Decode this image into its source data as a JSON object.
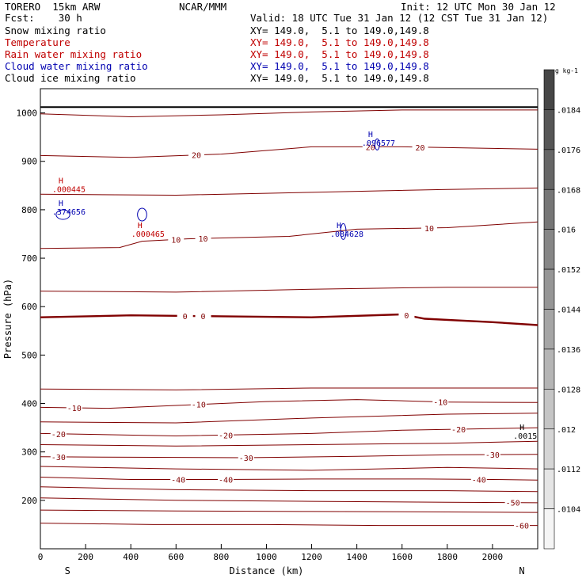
{
  "header": {
    "model": "TORERO  15km ARW",
    "center": "NCAR/MMM",
    "init": "Init: 12 UTC Mon 30 Jan 12",
    "fcst": "Fcst:    30 h",
    "valid": "Valid: 18 UTC Tue 31 Jan 12 (12 CST Tue 31 Jan 12)"
  },
  "legend": [
    {
      "label": "Snow mixing ratio",
      "xy": "XY= 149.0,  5.1 to 149.0,149.8",
      "color": "#000000"
    },
    {
      "label": "Temperature",
      "xy": "XY= 149.0,  5.1 to 149.0,149.8",
      "color": "#c00000"
    },
    {
      "label": "Rain water mixing ratio",
      "xy": "XY= 149.0,  5.1 to 149.0,149.8",
      "color": "#c00000"
    },
    {
      "label": "Cloud water mixing ratio",
      "xy": "XY= 149.0,  5.1 to 149.0,149.8",
      "color": "#0000b0"
    },
    {
      "label": "Cloud ice mixing ratio",
      "xy": "XY= 149.0,  5.1 to 149.0,149.8",
      "color": "#000000"
    }
  ],
  "chart_data": {
    "type": "contour-cross-section",
    "xlabel": "Distance (km)",
    "ylabel": "Pressure (hPa)",
    "xlim": [
      0,
      2200
    ],
    "ylim": [
      1050,
      100
    ],
    "x_ticks": [
      0,
      200,
      400,
      600,
      800,
      1000,
      1200,
      1400,
      1600,
      1800,
      2000
    ],
    "y_ticks": [
      200,
      300,
      400,
      500,
      600,
      700,
      800,
      900,
      1000
    ],
    "x_end_labels": {
      "left": "S",
      "right": "N"
    },
    "isotherms": [
      {
        "level": -60,
        "points": [
          [
            0,
            153
          ],
          [
            500,
            150
          ],
          [
            1000,
            150
          ],
          [
            1500,
            148
          ],
          [
            2000,
            148
          ],
          [
            2200,
            148
          ]
        ],
        "labels": [
          [
            2130,
            -60
          ]
        ]
      },
      {
        "level": -55,
        "points": [
          [
            0,
            180
          ],
          [
            600,
            178
          ],
          [
            1200,
            177
          ],
          [
            1800,
            176
          ],
          [
            2200,
            175
          ]
        ],
        "labels": []
      },
      {
        "level": -50,
        "points": [
          [
            0,
            205
          ],
          [
            600,
            200
          ],
          [
            1200,
            198
          ],
          [
            1800,
            196
          ],
          [
            2200,
            195
          ]
        ],
        "labels": [
          [
            2090,
            -50
          ]
        ]
      },
      {
        "level": -45,
        "points": [
          [
            0,
            228
          ],
          [
            600,
            222
          ],
          [
            1200,
            220
          ],
          [
            1800,
            220
          ],
          [
            2200,
            218
          ]
        ],
        "labels": []
      },
      {
        "level": -40,
        "points": [
          [
            0,
            248
          ],
          [
            400,
            243
          ],
          [
            800,
            243
          ],
          [
            1200,
            244
          ],
          [
            1700,
            244
          ],
          [
            2000,
            243
          ],
          [
            2200,
            242
          ]
        ],
        "labels": [
          [
            610,
            -40
          ],
          [
            820,
            -40
          ],
          [
            1940,
            -40
          ]
        ]
      },
      {
        "level": -35,
        "points": [
          [
            0,
            270
          ],
          [
            600,
            265
          ],
          [
            1200,
            262
          ],
          [
            1800,
            268
          ],
          [
            2200,
            265
          ]
        ],
        "labels": []
      },
      {
        "level": -30,
        "points": [
          [
            0,
            290
          ],
          [
            400,
            289
          ],
          [
            900,
            288
          ],
          [
            1400,
            291
          ],
          [
            1800,
            294
          ],
          [
            2200,
            295
          ]
        ],
        "labels": [
          [
            80,
            -30
          ],
          [
            910,
            -30
          ],
          [
            2000,
            -30
          ]
        ]
      },
      {
        "level": -25,
        "points": [
          [
            0,
            315
          ],
          [
            600,
            312
          ],
          [
            1200,
            315
          ],
          [
            1800,
            318
          ],
          [
            2200,
            322
          ]
        ],
        "labels": []
      },
      {
        "level": -20,
        "points": [
          [
            0,
            338
          ],
          [
            600,
            333
          ],
          [
            1200,
            338
          ],
          [
            1600,
            345
          ],
          [
            2000,
            348
          ],
          [
            2200,
            350
          ]
        ],
        "labels": [
          [
            80,
            -20
          ],
          [
            820,
            -20
          ],
          [
            1850,
            -20
          ]
        ]
      },
      {
        "level": -15,
        "points": [
          [
            0,
            362
          ],
          [
            600,
            360
          ],
          [
            1200,
            370
          ],
          [
            1800,
            378
          ],
          [
            2200,
            380
          ]
        ],
        "labels": []
      },
      {
        "level": -10,
        "points": [
          [
            0,
            392
          ],
          [
            300,
            390
          ],
          [
            600,
            396
          ],
          [
            1000,
            404
          ],
          [
            1400,
            408
          ],
          [
            1800,
            403
          ],
          [
            2200,
            402
          ]
        ],
        "labels": [
          [
            150,
            -10
          ],
          [
            700,
            -10
          ],
          [
            1770,
            -10
          ]
        ]
      },
      {
        "level": -5,
        "points": [
          [
            0,
            430
          ],
          [
            600,
            428
          ],
          [
            1200,
            432
          ],
          [
            1800,
            432
          ],
          [
            2200,
            432
          ]
        ],
        "labels": []
      },
      {
        "level": 0,
        "points": [
          [
            0,
            578
          ],
          [
            400,
            582
          ],
          [
            800,
            580
          ],
          [
            1200,
            578
          ],
          [
            1600,
            584
          ],
          [
            1700,
            575
          ],
          [
            2000,
            568
          ],
          [
            2200,
            562
          ]
        ],
        "labels": [
          [
            640,
            0
          ],
          [
            720,
            0
          ],
          [
            1620,
            0
          ]
        ]
      },
      {
        "level": 5,
        "points": [
          [
            0,
            632
          ],
          [
            600,
            630
          ],
          [
            1200,
            636
          ],
          [
            1800,
            640
          ],
          [
            2200,
            640
          ]
        ],
        "labels": []
      },
      {
        "level": 10,
        "points": [
          [
            0,
            720
          ],
          [
            350,
            722
          ],
          [
            450,
            735
          ],
          [
            650,
            740
          ],
          [
            1100,
            745
          ],
          [
            1400,
            760
          ],
          [
            1800,
            763
          ],
          [
            2200,
            775
          ]
        ],
        "labels": [
          [
            600,
            10
          ],
          [
            720,
            10
          ],
          [
            1720,
            10
          ]
        ]
      },
      {
        "level": 15,
        "points": [
          [
            0,
            832
          ],
          [
            600,
            830
          ],
          [
            1200,
            836
          ],
          [
            1800,
            842
          ],
          [
            2200,
            845
          ]
        ],
        "labels": []
      },
      {
        "level": 20,
        "points": [
          [
            0,
            912
          ],
          [
            400,
            908
          ],
          [
            800,
            915
          ],
          [
            1200,
            930
          ],
          [
            1600,
            930
          ],
          [
            2200,
            925
          ]
        ],
        "labels": [
          [
            690,
            20
          ],
          [
            1460,
            20
          ],
          [
            1680,
            20
          ]
        ]
      },
      {
        "level": 25,
        "points": [
          [
            0,
            998
          ],
          [
            400,
            992
          ],
          [
            800,
            996
          ],
          [
            1200,
            1002
          ],
          [
            1600,
            1006
          ],
          [
            2200,
            1006
          ]
        ],
        "labels": []
      }
    ],
    "cloud_features": [
      {
        "type": "H",
        "x": 80,
        "p": 808,
        "label": ".374656",
        "color": "#0000b0"
      },
      {
        "type": "H",
        "x": 80,
        "p": 855,
        "label": ".000445",
        "color": "#c00000"
      },
      {
        "type": "H",
        "x": 430,
        "p": 762,
        "label": ".000465",
        "color": "#c00000"
      },
      {
        "type": "H",
        "x": 1310,
        "p": 762,
        "label": ".084628",
        "color": "#0000b0"
      },
      {
        "type": "H",
        "x": 1450,
        "p": 950,
        "label": ".096577",
        "color": "#0000b0"
      },
      {
        "type": "H",
        "x": 2120,
        "p": 345,
        "label": ".0015",
        "color": "#000000"
      }
    ],
    "colorbar": {
      "unit": "g kg-1",
      "ticks": [
        ".0184",
        ".0176",
        ".0168",
        ".016",
        ".0152",
        ".0144",
        ".0136",
        ".0128",
        ".012",
        ".0112",
        ".0104"
      ]
    }
  }
}
